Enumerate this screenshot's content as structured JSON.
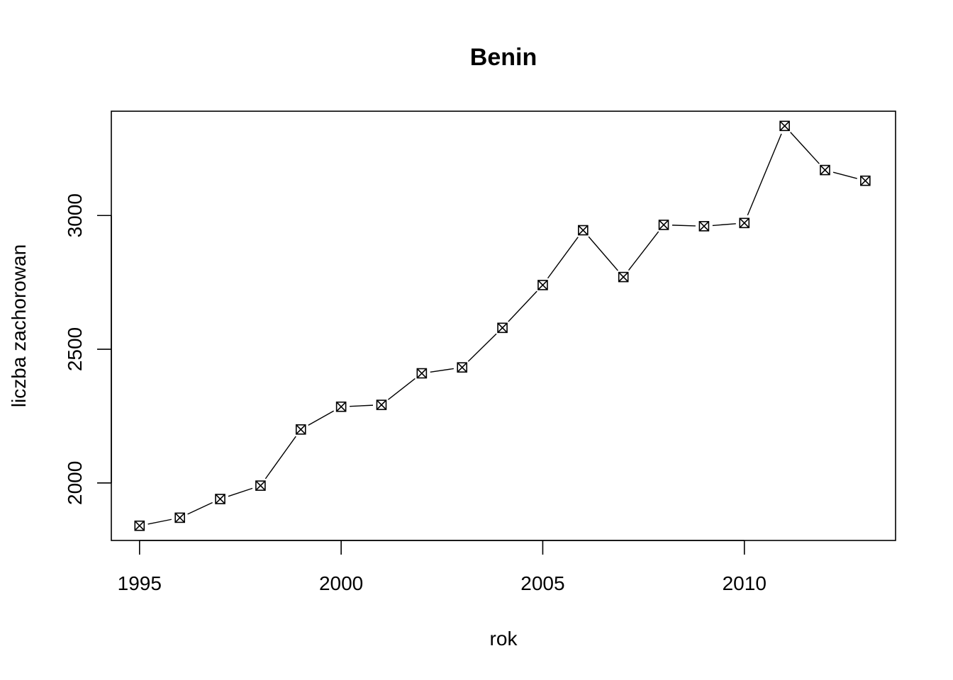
{
  "chart_data": {
    "type": "line",
    "title": "Benin",
    "xlabel": "rok",
    "ylabel": "liczba zachorowan",
    "x": [
      1995,
      1996,
      1997,
      1998,
      1999,
      2000,
      2001,
      2002,
      2003,
      2004,
      2005,
      2006,
      2007,
      2008,
      2009,
      2010,
      2011,
      2012,
      2013
    ],
    "series": [
      {
        "values": [
          1840,
          1870,
          1940,
          1990,
          2200,
          2285,
          2292,
          2410,
          2432,
          2580,
          2740,
          2945,
          2770,
          2965,
          2960,
          2972,
          3335,
          3170,
          3130
        ]
      }
    ],
    "xlim": [
      1994.3,
      2013.75
    ],
    "ylim": [
      1785,
      3390
    ],
    "xticks": [
      1995,
      2000,
      2005,
      2010
    ],
    "yticks": [
      2000,
      2500,
      3000
    ],
    "marker": "boxed-x",
    "line_style": "broken line between points",
    "grid": false,
    "legend": "none"
  }
}
